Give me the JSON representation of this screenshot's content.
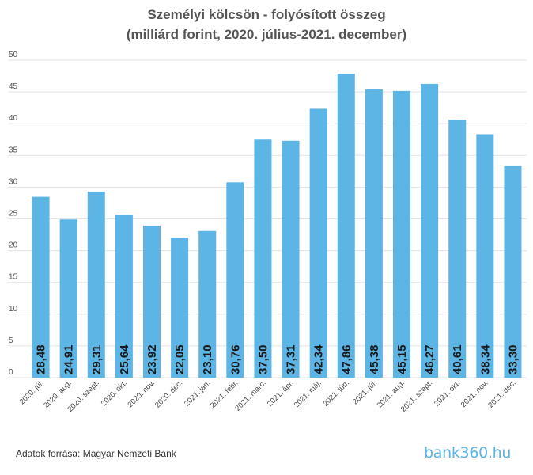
{
  "chart_data": {
    "type": "bar",
    "title": "Személyi kölcsön - folyósított összeg",
    "subtitle": "(milliárd forint, 2020. július-2021. december)",
    "categories": [
      "2020. júl.",
      "2020. aug.",
      "2020. szept.",
      "2020. okt.",
      "2020. nov.",
      "2020. dec.",
      "2021. jan.",
      "2021. febr.",
      "2021. márc.",
      "2021. ápr.",
      "2021. máj.",
      "2021. jún.",
      "2021. júl.",
      "2021. aug.",
      "2021. szept.",
      "2021. okt.",
      "2021. nov.",
      "2021. dec."
    ],
    "values": [
      28.48,
      24.91,
      29.31,
      25.64,
      23.92,
      22.05,
      23.1,
      30.76,
      37.5,
      37.31,
      42.34,
      47.86,
      45.38,
      45.15,
      46.27,
      40.61,
      38.34,
      33.3
    ],
    "value_labels": [
      "28,48",
      "24,91",
      "29,31",
      "25,64",
      "23,92",
      "22,05",
      "23,10",
      "30,76",
      "37,50",
      "37,31",
      "42,34",
      "47,86",
      "45,38",
      "45,15",
      "46,27",
      "40,61",
      "38,34",
      "33,30"
    ],
    "yticks": [
      "0",
      "5",
      "10",
      "15",
      "20",
      "25",
      "30",
      "35",
      "40",
      "45",
      "50"
    ],
    "ylim": [
      0,
      50
    ],
    "xlabel": "",
    "ylabel": "",
    "grid": true,
    "bar_color": "#5cb5e5"
  },
  "footer": {
    "source": "Adatok forrása: Magyar Nemzeti Bank",
    "brand": "bank360.hu"
  }
}
